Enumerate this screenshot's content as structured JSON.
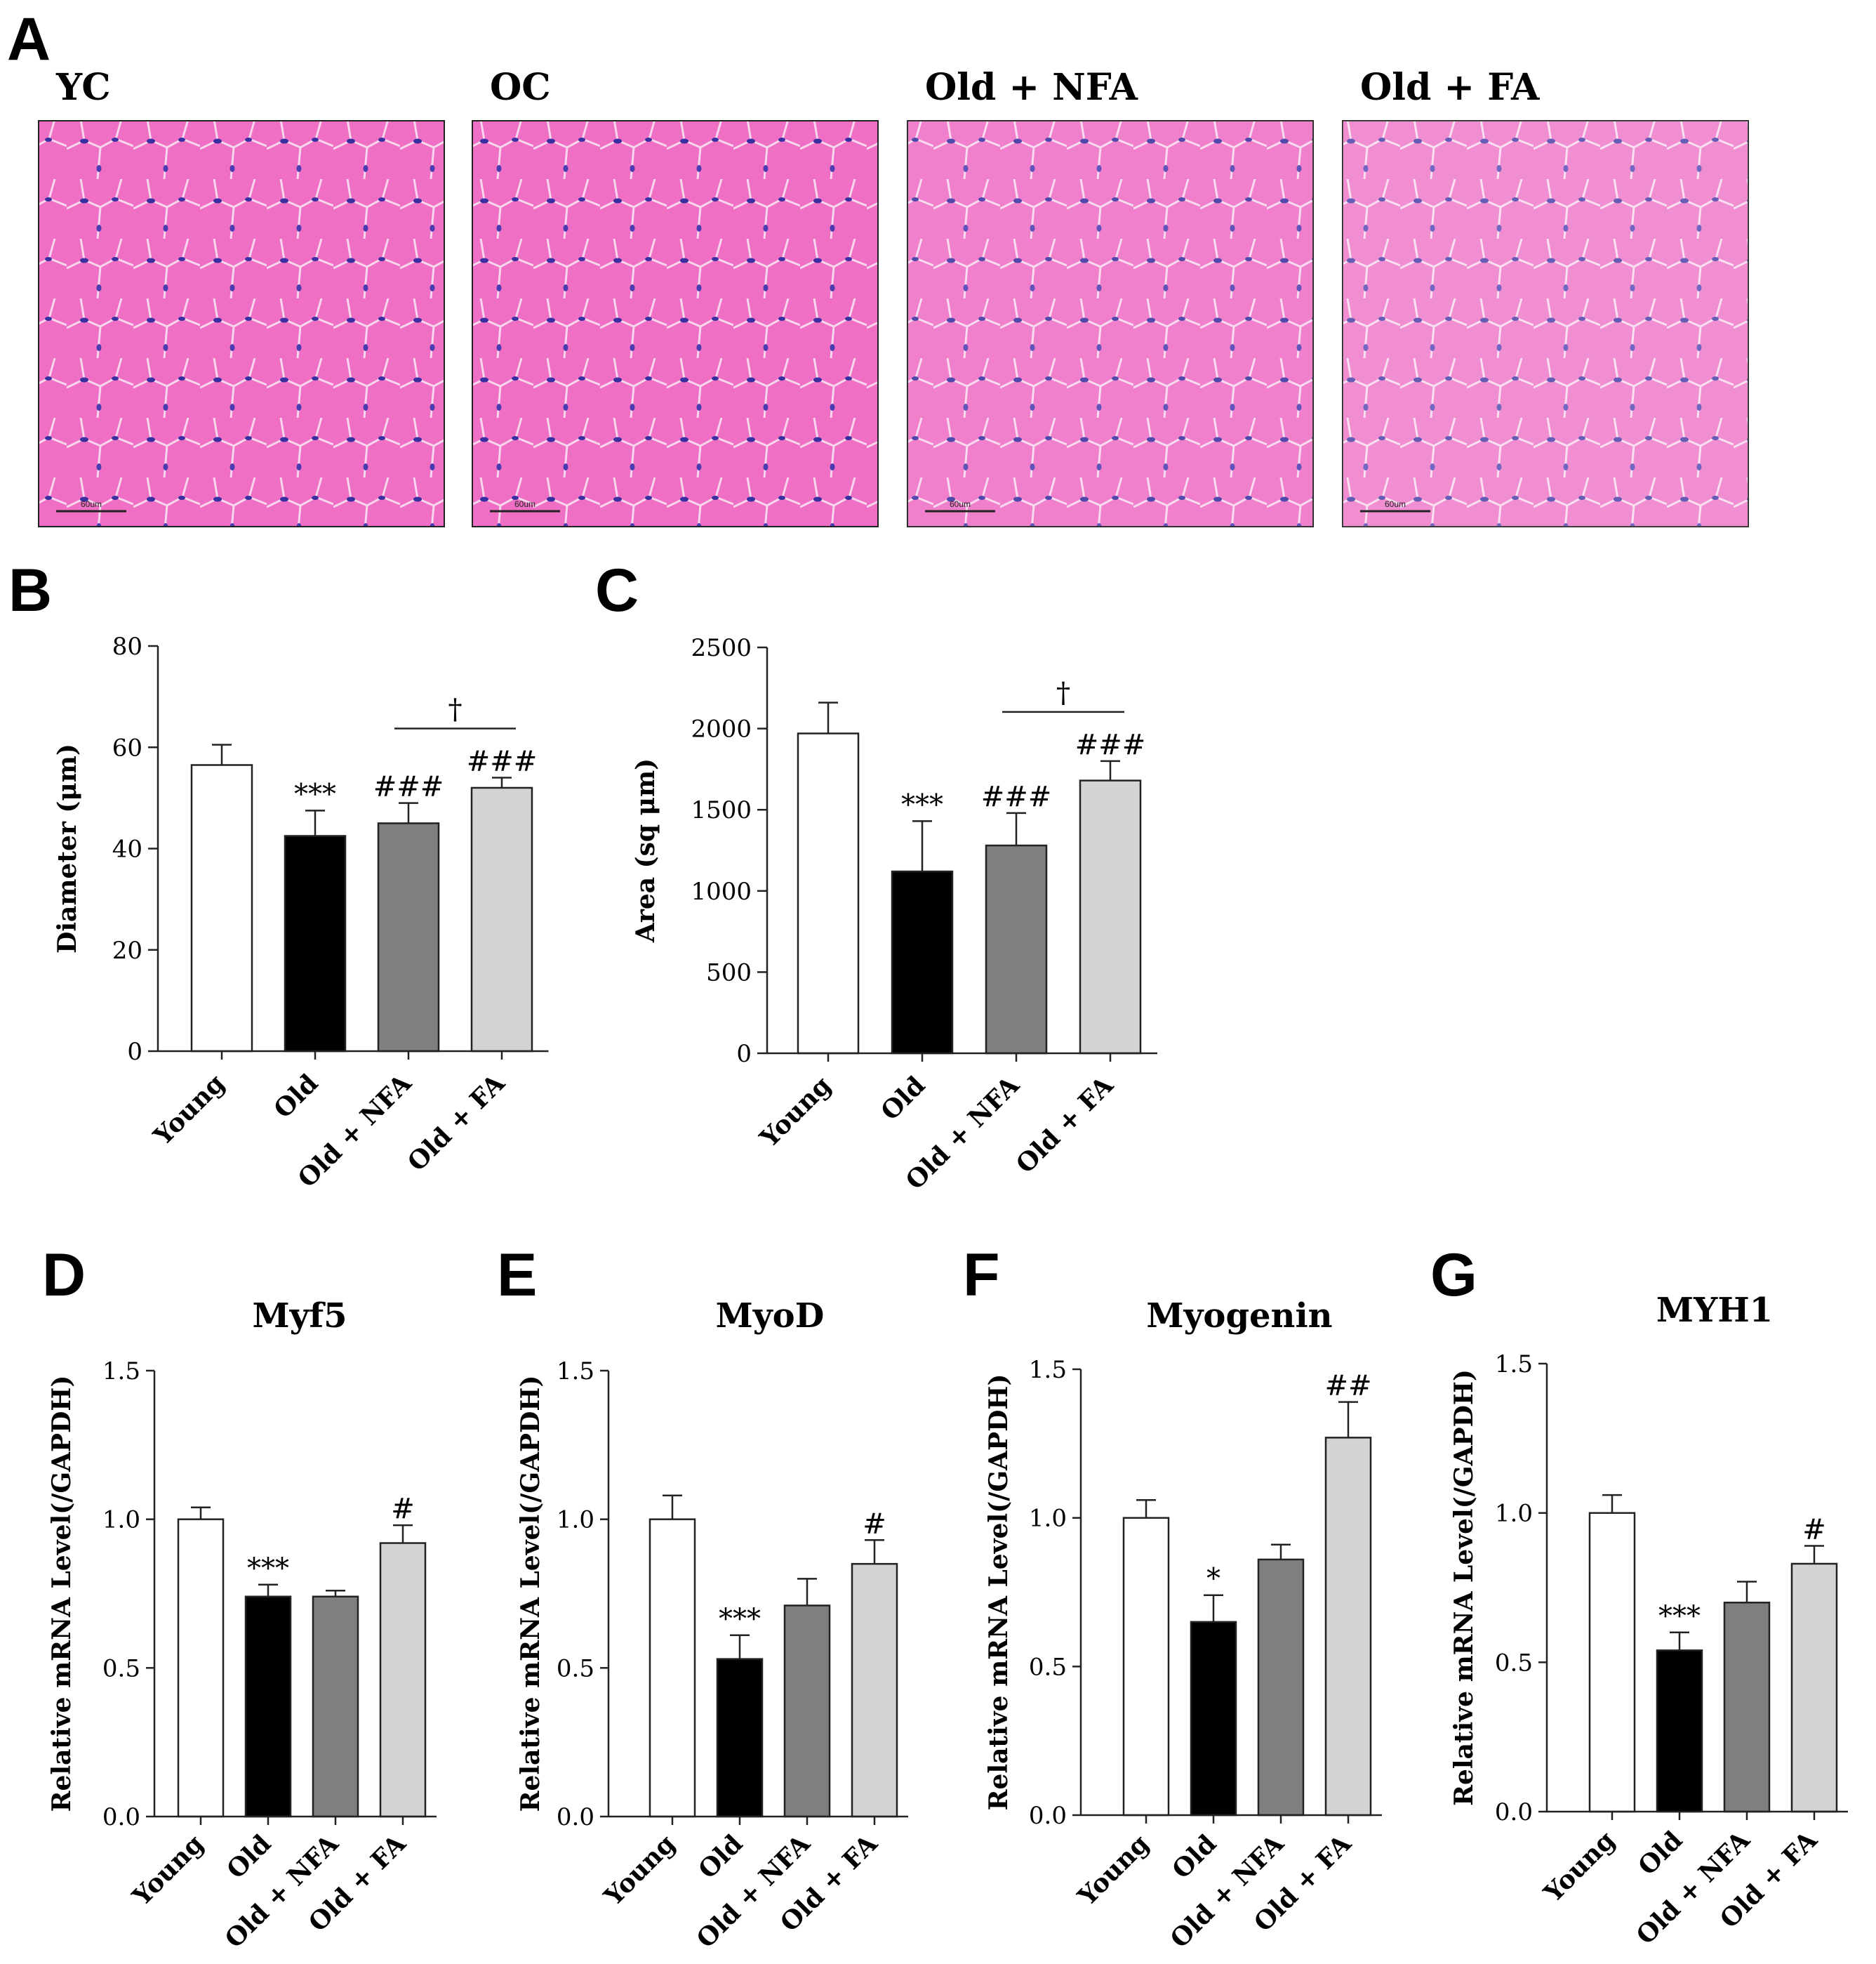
{
  "panels": {
    "A": {
      "letter": "A",
      "images": [
        {
          "title": "YC",
          "scale_bar": "60um"
        },
        {
          "title": "OC",
          "scale_bar": "60um"
        },
        {
          "title": "Old + NFA",
          "scale_bar": "60um"
        },
        {
          "title": "Old + FA",
          "scale_bar": "60um"
        }
      ]
    }
  },
  "colors": {
    "young": "#ffffff",
    "old": "#000000",
    "old_nfa": "#7f7f7f",
    "old_fa": "#d3d3d3",
    "tissue": "#ee6fc4",
    "nuclei": "#3a2fa0"
  },
  "chart_data": [
    {
      "id": "B",
      "letter": "B",
      "type": "bar",
      "title": "",
      "ylabel": "Diameter (μm)",
      "categories": [
        "Young",
        "Old",
        "Old + NFA",
        "Old + FA"
      ],
      "values": [
        56.5,
        42.5,
        45.0,
        52.0
      ],
      "errors": [
        4.0,
        5.0,
        4.0,
        2.0
      ],
      "ylim": [
        0,
        80
      ],
      "yticks": [
        0,
        20,
        40,
        60,
        80
      ],
      "ytick_labels": [
        "0",
        "20",
        "40",
        "60",
        "80"
      ],
      "annotations": [
        "",
        "***",
        "###",
        "###"
      ],
      "bracket": {
        "from": 2,
        "to": 3,
        "label": "†"
      }
    },
    {
      "id": "C",
      "letter": "C",
      "type": "bar",
      "title": "",
      "ylabel": "Area (sq μm)",
      "categories": [
        "Young",
        "Old",
        "Old + NFA",
        "Old + FA"
      ],
      "values": [
        1970,
        1120,
        1280,
        1680
      ],
      "errors": [
        190,
        310,
        200,
        120
      ],
      "ylim": [
        0,
        2500
      ],
      "yticks": [
        0,
        500,
        1000,
        1500,
        2000,
        2500
      ],
      "ytick_labels": [
        "0",
        "500",
        "1000",
        "1500",
        "2000",
        "2500"
      ],
      "annotations": [
        "",
        "***",
        "###",
        "###"
      ],
      "bracket": {
        "from": 2,
        "to": 3,
        "label": "†"
      }
    },
    {
      "id": "D",
      "letter": "D",
      "type": "bar",
      "title": "Myf5",
      "ylabel": "Relative mRNA Level(/GAPDH)",
      "categories": [
        "Young",
        "Old",
        "Old + NFA",
        "Old + FA"
      ],
      "values": [
        1.0,
        0.74,
        0.74,
        0.92
      ],
      "errors": [
        0.04,
        0.04,
        0.02,
        0.06
      ],
      "ylim": [
        0,
        1.5
      ],
      "yticks": [
        0,
        0.5,
        1.0,
        1.5
      ],
      "ytick_labels": [
        "0.0",
        "0.5",
        "1.0",
        "1.5"
      ],
      "annotations": [
        "",
        "***",
        "",
        "#"
      ]
    },
    {
      "id": "E",
      "letter": "E",
      "type": "bar",
      "title": "MyoD",
      "ylabel": "Relative mRNA Level(/GAPDH)",
      "categories": [
        "Young",
        "Old",
        "Old + NFA",
        "Old + FA"
      ],
      "values": [
        1.0,
        0.53,
        0.71,
        0.85
      ],
      "errors": [
        0.08,
        0.08,
        0.09,
        0.08
      ],
      "ylim": [
        0,
        1.5
      ],
      "yticks": [
        0,
        0.5,
        1.0,
        1.5
      ],
      "ytick_labels": [
        "0.0",
        "0.5",
        "1.0",
        "1.5"
      ],
      "annotations": [
        "",
        "***",
        "",
        "#"
      ]
    },
    {
      "id": "F",
      "letter": "F",
      "type": "bar",
      "title": "Myogenin",
      "ylabel": "Relative mRNA Level(/GAPDH)",
      "categories": [
        "Young",
        "Old",
        "Old + NFA",
        "Old + FA"
      ],
      "values": [
        1.0,
        0.65,
        0.86,
        1.27
      ],
      "errors": [
        0.06,
        0.09,
        0.05,
        0.12
      ],
      "ylim": [
        0,
        1.5
      ],
      "yticks": [
        0,
        0.5,
        1.0,
        1.5
      ],
      "ytick_labels": [
        "0.0",
        "0.5",
        "1.0",
        "1.5"
      ],
      "annotations": [
        "",
        "*",
        "",
        "##"
      ]
    },
    {
      "id": "G",
      "letter": "G",
      "type": "bar",
      "title": "MYH1",
      "ylabel": "Relative mRNA Level(/GAPDH)",
      "categories": [
        "Young",
        "Old",
        "Old + NFA",
        "Old + FA"
      ],
      "values": [
        1.0,
        0.54,
        0.7,
        0.83
      ],
      "errors": [
        0.06,
        0.06,
        0.07,
        0.06
      ],
      "ylim": [
        0,
        1.5
      ],
      "yticks": [
        0,
        0.5,
        1.0,
        1.5
      ],
      "ytick_labels": [
        "0.0",
        "0.5",
        "1.0",
        "1.5"
      ],
      "annotations": [
        "",
        "***",
        "",
        "#"
      ]
    }
  ]
}
